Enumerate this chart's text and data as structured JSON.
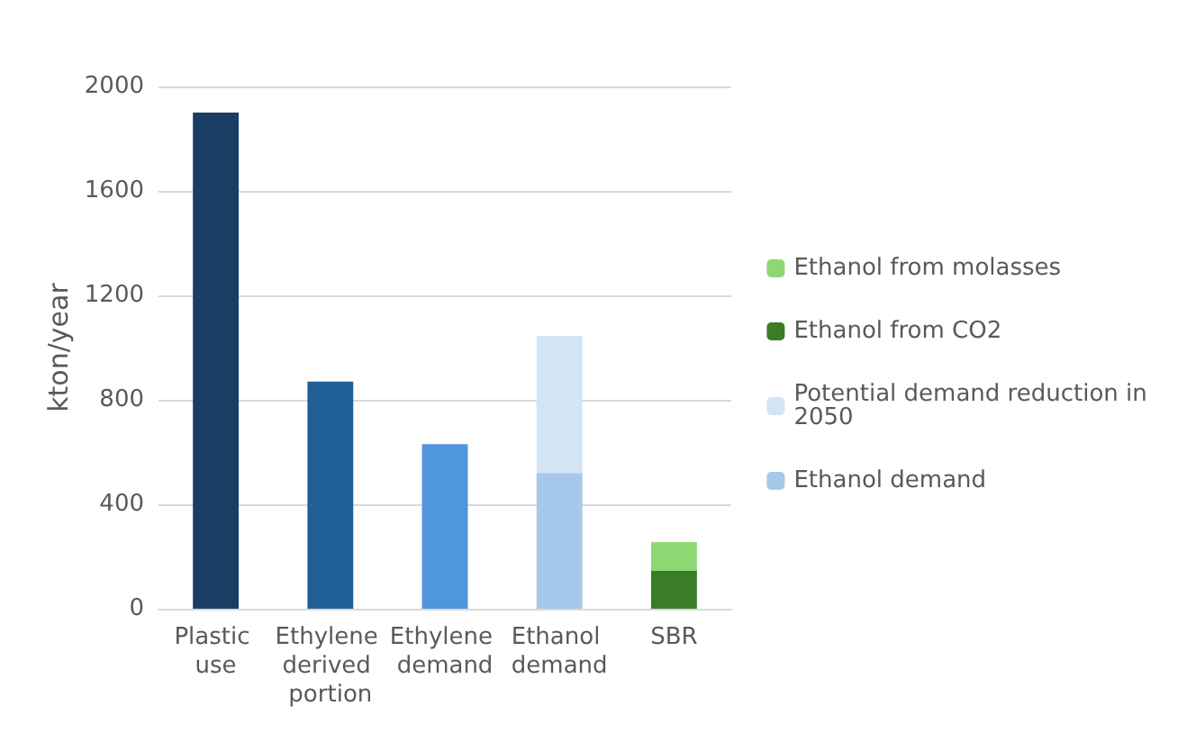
{
  "chart_data": {
    "type": "bar",
    "stacked": true,
    "ylabel": "kton/year",
    "categories": [
      "Plastic use",
      "Ethylene derived portion",
      "Ethylene demand",
      "Ethanol demand",
      "SBR"
    ],
    "series": [
      {
        "colors": [
          "#1a3d63",
          "#215f9a",
          "#4f96db",
          null,
          null
        ],
        "values": [
          1900,
          870,
          630,
          null,
          null
        ]
      },
      {
        "name": "Ethanol demand",
        "color": "#a6c8eb",
        "values": [
          null,
          null,
          null,
          520,
          null
        ]
      },
      {
        "name": "Potential demand reduction in 2050",
        "color": "#d3e4f5",
        "values": [
          null,
          null,
          null,
          525,
          null
        ]
      },
      {
        "name": "Ethanol from CO2",
        "color": "#3a7d27",
        "values": [
          null,
          null,
          null,
          null,
          145
        ]
      },
      {
        "name": "Ethanol from molasses",
        "color": "#8ed873",
        "values": [
          null,
          null,
          null,
          null,
          110
        ]
      }
    ],
    "ylim": [
      0,
      2000
    ],
    "yticks": [
      0,
      400,
      800,
      1200,
      1600,
      2000
    ],
    "grid": "y",
    "legend": "right"
  }
}
